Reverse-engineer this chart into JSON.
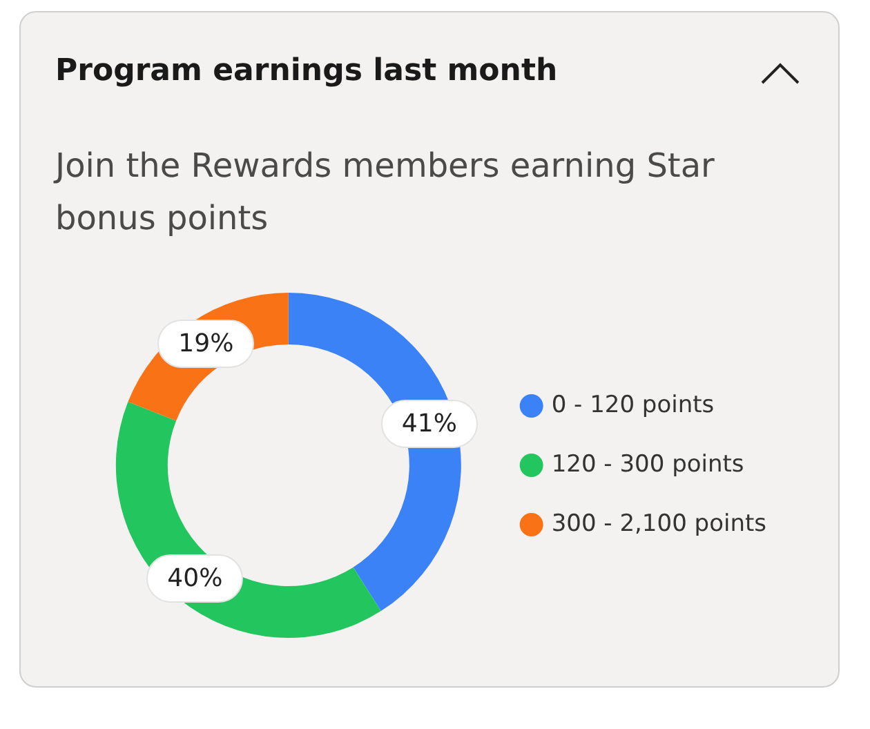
{
  "chart_data": {
    "type": "donut",
    "title": "Program earnings last month",
    "subtitle": "Join the Rewards members earning Star bonus points",
    "categories": [
      "0 - 120 points",
      "120 - 300 points",
      "300 - 2,100 points"
    ],
    "values": [
      41,
      40,
      19
    ],
    "colors": [
      "#3b82f6",
      "#22c55e",
      "#f97316"
    ],
    "value_labels": [
      "41%",
      "40%",
      "19%"
    ],
    "legend": "right"
  }
}
